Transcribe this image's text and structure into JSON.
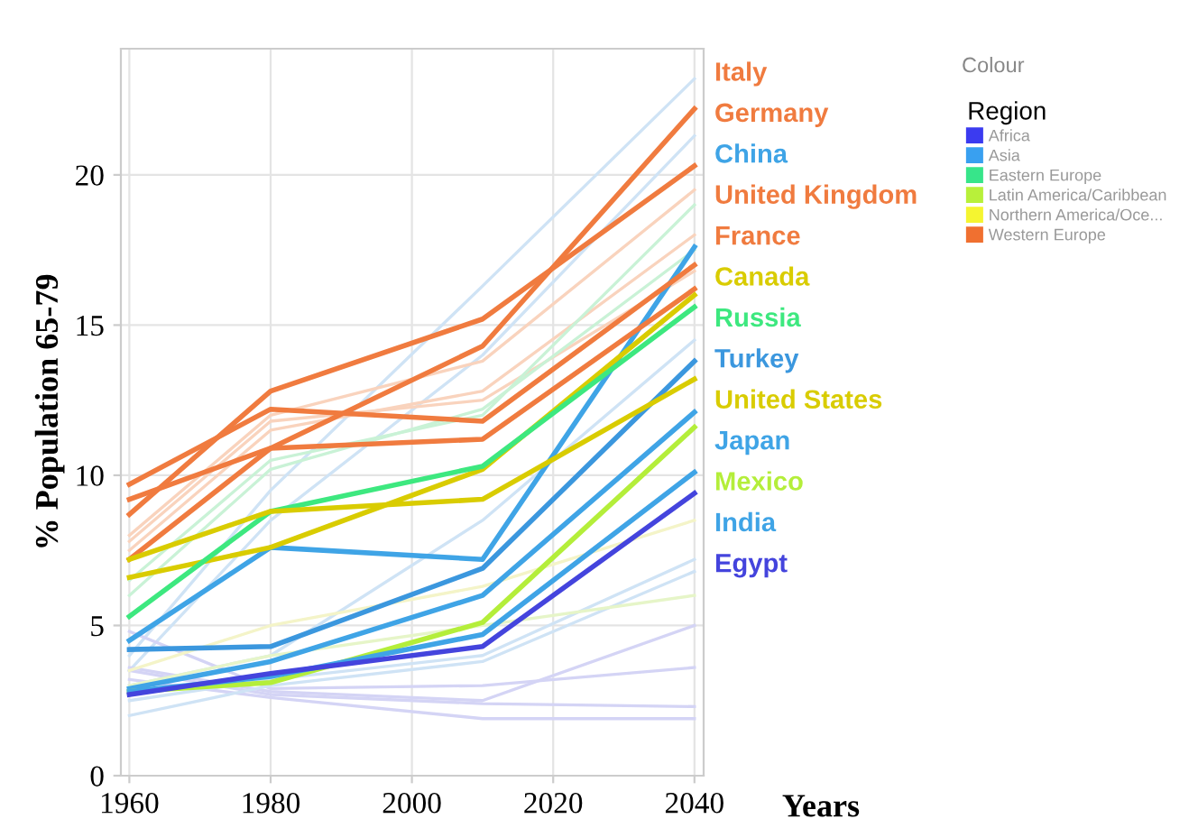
{
  "chart_data": {
    "type": "line",
    "xlabel": "Years",
    "ylabel": "% Population 65-79",
    "legend_title": "Region",
    "annotations": [
      "Colour"
    ],
    "x": [
      1960,
      1980,
      2010,
      2040
    ],
    "xlim": [
      1958.8,
      2041.3
    ],
    "xticks": [
      1960,
      1980,
      2000,
      2020,
      2040
    ],
    "ylim": [
      0,
      24.2
    ],
    "yticks": [
      0,
      5,
      10,
      15,
      20
    ],
    "grid": true,
    "legend": "right",
    "marker": "none",
    "line_style": "solid",
    "series": [
      {
        "color": "#cfe3f5",
        "values": [
          4.0,
          9.5,
          16.3,
          23.2
        ]
      },
      {
        "color": "#cfe3f5",
        "values": [
          3.5,
          8.5,
          14.0,
          21.3
        ]
      },
      {
        "color": "#f9d3bd",
        "values": [
          8.0,
          12.0,
          13.8,
          19.5
        ]
      },
      {
        "color": "#f9d3bd",
        "values": [
          7.5,
          11.5,
          12.8,
          18.0
        ]
      },
      {
        "color": "#f9d3bd",
        "values": [
          7.8,
          11.8,
          12.5,
          16.8
        ]
      },
      {
        "color": "#c9f2d6",
        "values": [
          6.5,
          10.5,
          12.0,
          19.0
        ]
      },
      {
        "color": "#c9f2d6",
        "values": [
          6.0,
          10.2,
          12.2,
          17.5
        ]
      },
      {
        "color": "#d4d4f5",
        "values": [
          3.5,
          2.7,
          2.4,
          2.3
        ]
      },
      {
        "color": "#d4d4f5",
        "values": [
          3.2,
          2.6,
          1.9,
          1.9
        ]
      },
      {
        "color": "#d4d4f5",
        "values": [
          4.8,
          2.9,
          3.0,
          3.6
        ]
      },
      {
        "color": "#d4d4f5",
        "values": [
          3.6,
          2.8,
          2.5,
          5.0
        ]
      },
      {
        "color": "#cfe3f5",
        "values": [
          3.0,
          4.0,
          8.5,
          14.5
        ]
      },
      {
        "color": "#cfe3f5",
        "values": [
          2.5,
          3.2,
          4.0,
          7.2
        ]
      },
      {
        "color": "#cfe3f5",
        "values": [
          2.0,
          3.0,
          3.8,
          6.8
        ]
      },
      {
        "color": "#f4f4c8",
        "values": [
          3.5,
          5.0,
          6.3,
          8.5
        ]
      },
      {
        "color": "#e6f5c8",
        "values": [
          3.0,
          4.0,
          5.0,
          6.0
        ]
      },
      {
        "name": "Italy",
        "color": "#f07b3f",
        "values": [
          7.2,
          10.9,
          14.3,
          22.2
        ]
      },
      {
        "name": "Germany",
        "color": "#f07b3f",
        "values": [
          8.7,
          12.8,
          15.2,
          20.3
        ]
      },
      {
        "name": "China",
        "color": "#3fa4e6",
        "values": [
          4.5,
          7.6,
          7.2,
          17.6
        ]
      },
      {
        "name": "United Kingdom",
        "color": "#f07b3f",
        "values": [
          9.7,
          12.2,
          11.8,
          17.0
        ]
      },
      {
        "name": "France",
        "color": "#f07b3f",
        "values": [
          9.2,
          10.9,
          11.2,
          16.2
        ]
      },
      {
        "name": "Canada",
        "color": "#d9cc00",
        "values": [
          6.6,
          7.6,
          10.2,
          16.0
        ]
      },
      {
        "name": "Russia",
        "color": "#3de87f",
        "values": [
          5.3,
          8.8,
          10.3,
          15.6
        ]
      },
      {
        "name": "Turkey",
        "color": "#3b97de",
        "values": [
          4.2,
          4.3,
          6.9,
          13.8
        ]
      },
      {
        "name": "United States",
        "color": "#d9cc00",
        "values": [
          7.2,
          8.8,
          9.2,
          13.2
        ]
      },
      {
        "name": "Japan",
        "color": "#3fa4e6",
        "values": [
          2.9,
          3.8,
          6.0,
          12.1
        ]
      },
      {
        "name": "Mexico",
        "color": "#b4ee3a",
        "values": [
          2.8,
          3.1,
          5.1,
          11.6
        ]
      },
      {
        "name": "India",
        "color": "#3fa4e6",
        "values": [
          2.8,
          3.3,
          4.7,
          10.1
        ]
      },
      {
        "name": "Egypt",
        "color": "#4444dd",
        "values": [
          2.7,
          3.4,
          4.3,
          9.4
        ]
      },
      {
        "name": "Africa",
        "color": "#3b3bf0",
        "values": [
          null,
          null,
          null,
          null
        ]
      },
      {
        "name": "Asia",
        "color": "#39a0f0",
        "values": [
          null,
          null,
          null,
          null
        ]
      },
      {
        "name": "Eastern Europe",
        "color": "#37e58a",
        "values": [
          null,
          null,
          null,
          null
        ]
      },
      {
        "name": "Latin America/Caribbean",
        "color": "#b8f03a",
        "values": [
          null,
          null,
          null,
          null
        ]
      },
      {
        "name": "Northern America/Oce...",
        "color": "#f5f530",
        "values": [
          null,
          null,
          null,
          null
        ]
      },
      {
        "name": "Western Europe",
        "color": "#f07030",
        "values": [
          null,
          null,
          null,
          null
        ]
      }
    ]
  }
}
